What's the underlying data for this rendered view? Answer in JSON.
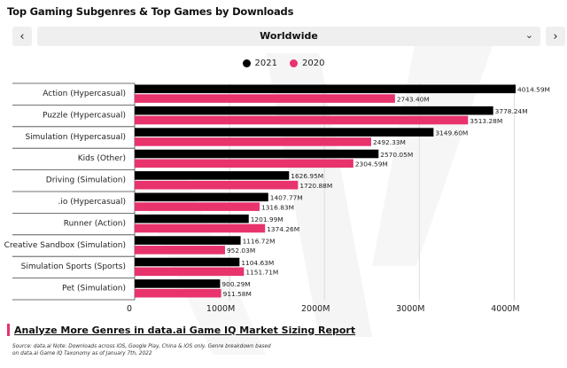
{
  "header": {
    "title": "Top Gaming Subgenres & Top Games by Downloads"
  },
  "region_selector": {
    "value": "Worldwide",
    "prev_icon": "chevron-left-icon",
    "next_icon": "chevron-right-icon",
    "dropdown_icon": "chevron-down-icon"
  },
  "footer": {
    "cta_text": "Analyze More Genres in data.ai Game IQ Market Sizing Report",
    "source_line1": "Source: data.ai Note: Downloads across iOS, Google Play, China & iOS only. Genre breakdown based",
    "source_line2": "on data.ai Game IQ Taxonomy as of January 7th, 2022"
  },
  "colors": {
    "series_2021": "#000000",
    "series_2020": "#e8336d",
    "accent": "#e8336d"
  },
  "chart_data": {
    "type": "bar",
    "orientation": "horizontal",
    "categories": [
      "Action (Hypercasual)",
      "Puzzle (Hypercasual)",
      "Simulation (Hypercasual)",
      "Kids (Other)",
      "Driving (Simulation)",
      ".io (Hypercasual)",
      "Runner (Action)",
      "Creative Sandbox (Simulation)",
      "Simulation Sports (Sports)",
      "Pet (Simulation)"
    ],
    "series": [
      {
        "name": "2021",
        "color": "#000000",
        "values": [
          4014.59,
          3778.24,
          3149.6,
          2570.05,
          1626.95,
          1407.77,
          1201.99,
          1116.72,
          1104.63,
          900.29
        ],
        "labels": [
          "4014.59M",
          "3778.24M",
          "3149.60M",
          "2570.05M",
          "1626.95M",
          "1407.77M",
          "1201.99M",
          "1116.72M",
          "1104.63M",
          "900.29M"
        ]
      },
      {
        "name": "2020",
        "color": "#e8336d",
        "values": [
          2743.4,
          3513.28,
          2492.33,
          2304.59,
          1720.88,
          1316.83,
          1374.26,
          952.03,
          1151.71,
          911.58
        ],
        "labels": [
          "2743.40M",
          "3513.28M",
          "2492.33M",
          "2304.59M",
          "1720.88M",
          "1316.83M",
          "1374.26M",
          "952.03M",
          "1151.71M",
          "911.58M"
        ]
      }
    ],
    "x_ticks": [
      0,
      1000,
      2000,
      3000,
      4000
    ],
    "x_tick_labels": [
      "0",
      "1000M",
      "2000M",
      "3000M",
      "4000M"
    ],
    "xlim": [
      0,
      4014.59
    ],
    "grid": true,
    "legend_position": "top-center"
  }
}
